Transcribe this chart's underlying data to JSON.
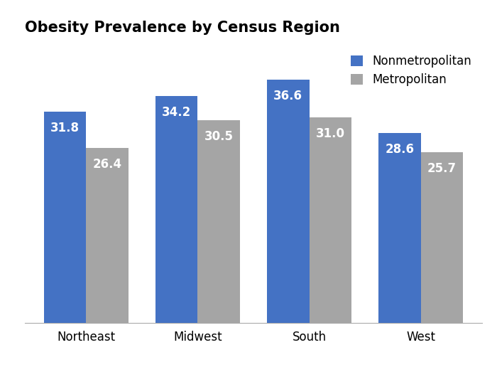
{
  "title": "Obesity Prevalence by Census Region",
  "categories": [
    "Northeast",
    "Midwest",
    "South",
    "West"
  ],
  "nonmetro_values": [
    31.8,
    34.2,
    36.6,
    28.6
  ],
  "metro_values": [
    26.4,
    30.5,
    31.0,
    25.7
  ],
  "nonmetro_color": "#4472C4",
  "metro_color": "#A5A5A5",
  "nonmetro_label": "Nonmetropolitan",
  "metro_label": "Metropolitan",
  "bar_width": 0.38,
  "title_fontsize": 15,
  "tick_fontsize": 12,
  "legend_fontsize": 12,
  "value_fontsize": 12,
  "value_color": "white",
  "background_color": "#ffffff",
  "ylim": [
    0,
    42
  ]
}
